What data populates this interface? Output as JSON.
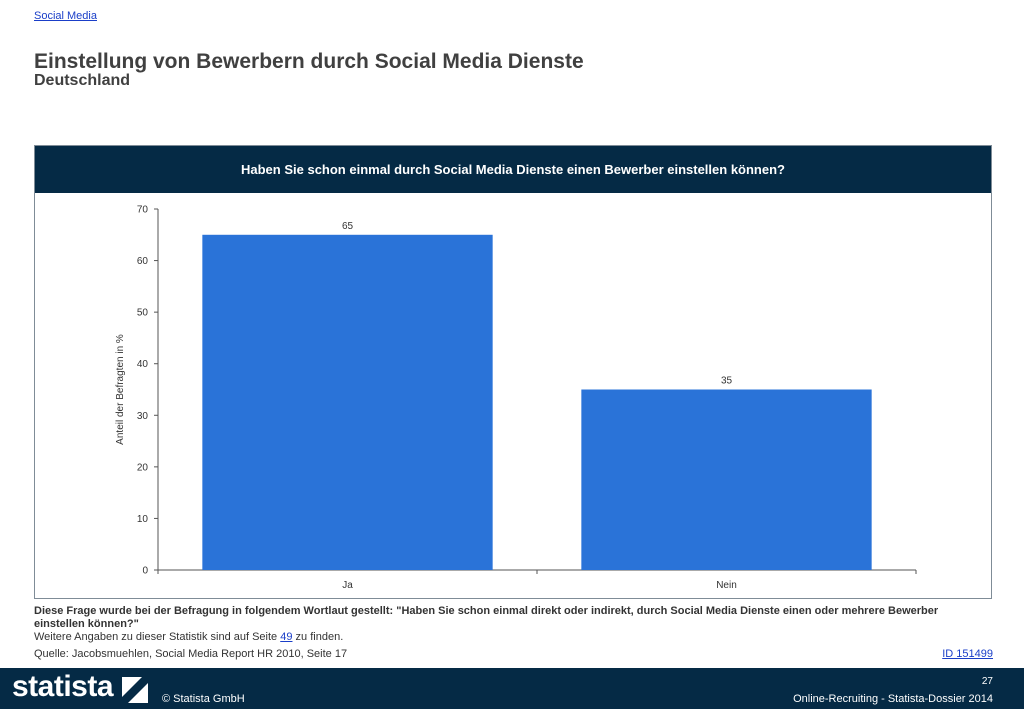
{
  "breadcrumb": "Social Media",
  "title": "Einstellung von Bewerbern durch Social Media Dienste",
  "subtitle": "Deutschland",
  "chart_header": "Haben Sie schon einmal durch Social Media Dienste einen Bewerber einstellen können?",
  "chart_data": {
    "type": "bar",
    "categories": [
      "Ja",
      "Nein"
    ],
    "values": [
      65,
      35
    ],
    "data_labels": [
      "65",
      "35"
    ],
    "title": "Haben Sie schon einmal durch Social Media Dienste einen Bewerber einstellen können?",
    "xlabel": "",
    "ylabel": "Anteil der Befragten in %",
    "ylim": [
      0,
      70
    ],
    "yticks": [
      0,
      10,
      20,
      30,
      40,
      50,
      60,
      70
    ],
    "grid": false,
    "legend": "none",
    "bar_color": "#2a73d8"
  },
  "notes": {
    "question": "Diese Frage wurde bei der Befragung in folgendem Wortlaut gestellt: \"Haben Sie schon einmal direkt oder indirekt, durch Social Media Dienste einen oder mehrere Bewerber einstellen können?\"",
    "more_before": "Weitere Angaben zu dieser Statistik sind auf Seite",
    "more_page": "49",
    "more_after": "zu finden.",
    "source": "Quelle: Jacobsmuehlen, Social Media Report HR 2010, Seite 17",
    "statistic_id": "ID 151499"
  },
  "footer": {
    "logo": "statista",
    "copyright": "© Statista GmbH",
    "page_number": "27",
    "dossier": "Online-Recruiting - Statista-Dossier 2014"
  },
  "colors": {
    "header_bg": "#052a45",
    "bar": "#2a73d8",
    "link": "#1a3ec8"
  }
}
